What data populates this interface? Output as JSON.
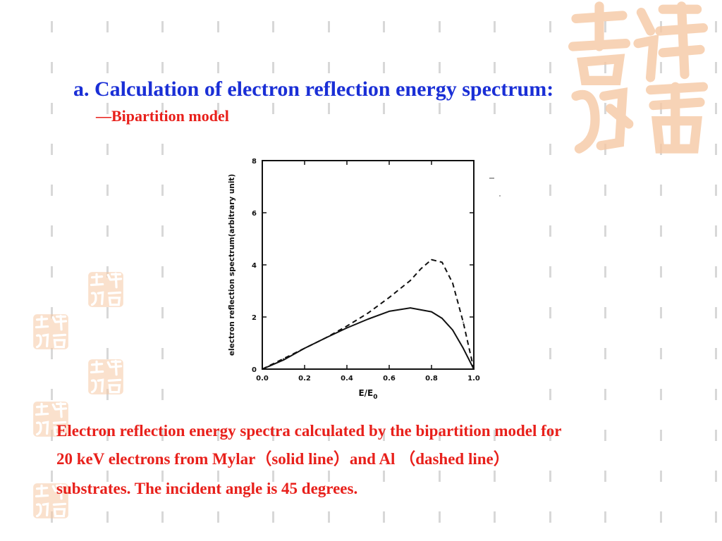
{
  "slide": {
    "title": "a. Calculation of electron reflection energy spectrum:",
    "subtitle": "—Bipartition model",
    "caption": {
      "line1": "Electron reflection energy spectra calculated by the bipartition model for",
      "line2": "20 keV electrons from Mylar（solid line）and Al （dashed line）",
      "line3": "substrates. The incident angle is 45 degrees."
    }
  },
  "colors": {
    "title": "#1a2fd6",
    "accent": "#e8201b",
    "pattern": "#d8d8d8",
    "seal": "#f6c9a4"
  },
  "chart_data": {
    "type": "line",
    "title": "",
    "xlabel": "E/E",
    "xlabel_subscript": "0",
    "ylabel": "electron reflection spectrum(arbitrary unit)",
    "xlim": [
      0,
      1.0
    ],
    "ylim": [
      0,
      8
    ],
    "x_ticks": [
      "0.0",
      "0.2",
      "0.4",
      "0.6",
      "0.8",
      "1.0"
    ],
    "y_ticks": [
      "0",
      "2",
      "4",
      "6",
      "8"
    ],
    "grid": false,
    "series": [
      {
        "line_style": "solid",
        "x": [
          0.0,
          0.1,
          0.2,
          0.3,
          0.4,
          0.5,
          0.6,
          0.7,
          0.8,
          0.85,
          0.9,
          0.95,
          1.0
        ],
        "y": [
          0.0,
          0.35,
          0.8,
          1.2,
          1.58,
          1.92,
          2.22,
          2.35,
          2.2,
          1.95,
          1.5,
          0.8,
          0.0
        ]
      },
      {
        "line_style": "dashed",
        "x": [
          0.0,
          0.1,
          0.2,
          0.3,
          0.4,
          0.5,
          0.6,
          0.7,
          0.75,
          0.8,
          0.85,
          0.9,
          0.95,
          1.0
        ],
        "y": [
          0.0,
          0.4,
          0.8,
          1.2,
          1.65,
          2.15,
          2.75,
          3.4,
          3.85,
          4.2,
          4.1,
          3.3,
          1.8,
          0.0
        ]
      }
    ]
  }
}
